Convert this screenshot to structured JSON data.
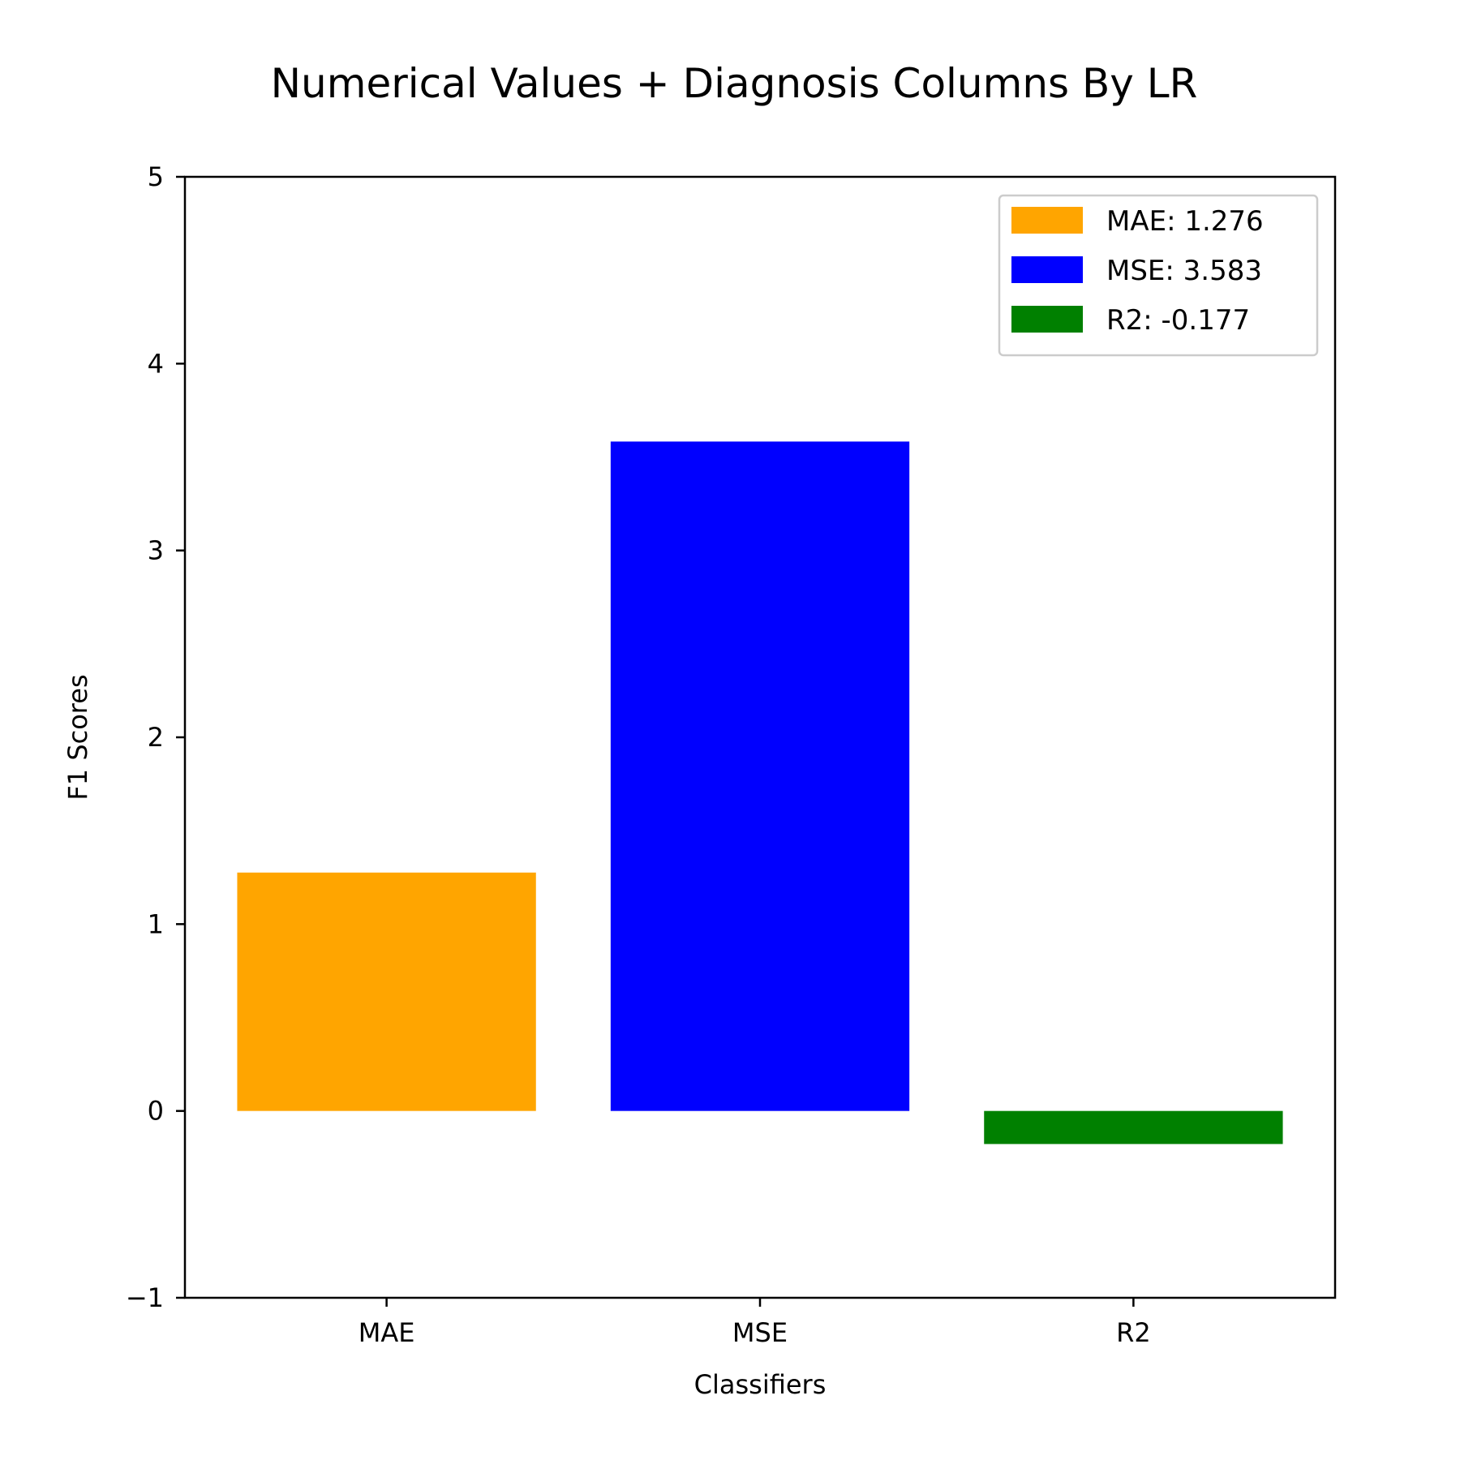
{
  "chart_data": {
    "type": "bar",
    "title": "Numerical Values + Diagnosis Columns By LR",
    "xlabel": "Classifiers",
    "ylabel": "F1 Scores",
    "categories": [
      "MAE",
      "MSE",
      "R2"
    ],
    "values": [
      1.276,
      3.583,
      -0.177
    ],
    "colors": [
      "#ffa500",
      "#0000ff",
      "#008000"
    ],
    "ylim": [
      -1,
      5
    ],
    "yticks": [
      -1,
      0,
      1,
      2,
      3,
      4,
      5
    ],
    "ytick_labels": [
      "−1",
      "0",
      "1",
      "2",
      "3",
      "4",
      "5"
    ],
    "grid": false,
    "legend": {
      "placement": "top-right",
      "entries": [
        "MAE: 1.276",
        "MSE: 3.583",
        "R2: -0.177"
      ]
    }
  }
}
